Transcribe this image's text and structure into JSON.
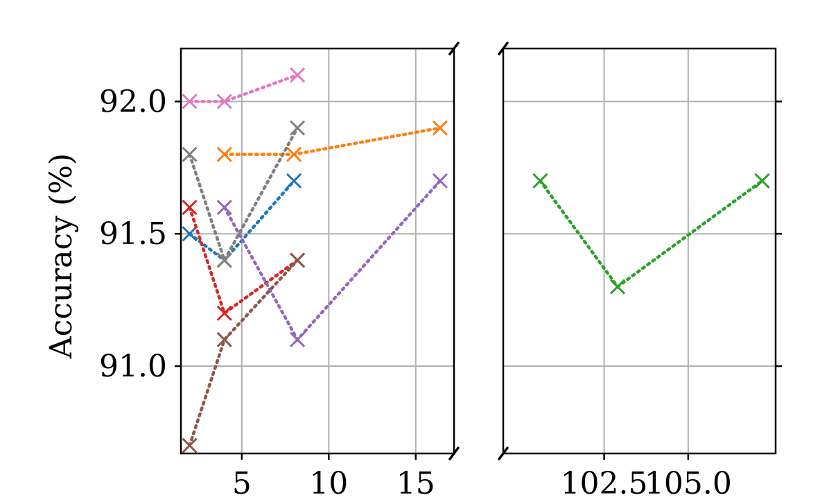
{
  "chart_data": {
    "type": "line",
    "ylabel": "Accuracy (%)",
    "xlabel": "",
    "ylim": [
      90.67,
      92.2
    ],
    "yticks": [
      91.0,
      91.5,
      92.0
    ],
    "ytick_labels": [
      "91.0",
      "91.5",
      "92.0"
    ],
    "grid": true,
    "broken_x_axis": true,
    "panels": [
      {
        "id": "left",
        "xlim": [
          1.5,
          17.2
        ],
        "xticks": [
          5,
          10,
          15
        ],
        "xtick_labels": [
          "5",
          "10",
          "15"
        ]
      },
      {
        "id": "right",
        "xlim": [
          99.5,
          107.6
        ],
        "xticks": [
          102.5,
          105.0
        ],
        "xtick_labels": [
          "102.5",
          "105.0"
        ]
      }
    ],
    "series": [
      {
        "color": "#1f77b4",
        "marker": "x",
        "linestyle": "dotted",
        "panel": "left",
        "x": [
          2,
          4,
          8
        ],
        "y": [
          91.5,
          91.4,
          91.7
        ]
      },
      {
        "color": "#ff7f0e",
        "marker": "x",
        "linestyle": "dotted",
        "panel": "left",
        "x": [
          4,
          8,
          16.4
        ],
        "y": [
          91.8,
          91.8,
          91.9
        ]
      },
      {
        "color": "#2ca02c",
        "marker": "x",
        "linestyle": "dotted",
        "panel": "right",
        "x": [
          100.6,
          102.9,
          107.2
        ],
        "y": [
          91.7,
          91.3,
          91.7
        ]
      },
      {
        "color": "#d62728",
        "marker": "x",
        "linestyle": "dotted",
        "panel": "left",
        "x": [
          2,
          4,
          8.2
        ],
        "y": [
          91.6,
          91.2,
          91.4
        ]
      },
      {
        "color": "#9467bd",
        "marker": "x",
        "linestyle": "dotted",
        "panel": "left",
        "x": [
          4,
          8.2,
          16.4
        ],
        "y": [
          91.6,
          91.1,
          91.7
        ]
      },
      {
        "color": "#8c564b",
        "marker": "x",
        "linestyle": "dotted",
        "panel": "left",
        "x": [
          2,
          4,
          8.2
        ],
        "y": [
          90.7,
          91.1,
          91.4
        ]
      },
      {
        "color": "#e377c2",
        "marker": "x",
        "linestyle": "dotted",
        "panel": "left",
        "x": [
          2,
          4,
          8.2
        ],
        "y": [
          92.0,
          92.0,
          92.1
        ]
      },
      {
        "color": "#7f7f7f",
        "marker": "x",
        "linestyle": "dotted",
        "panel": "left",
        "x": [
          2,
          4,
          8.2
        ],
        "y": [
          91.8,
          91.4,
          91.9
        ]
      }
    ]
  }
}
